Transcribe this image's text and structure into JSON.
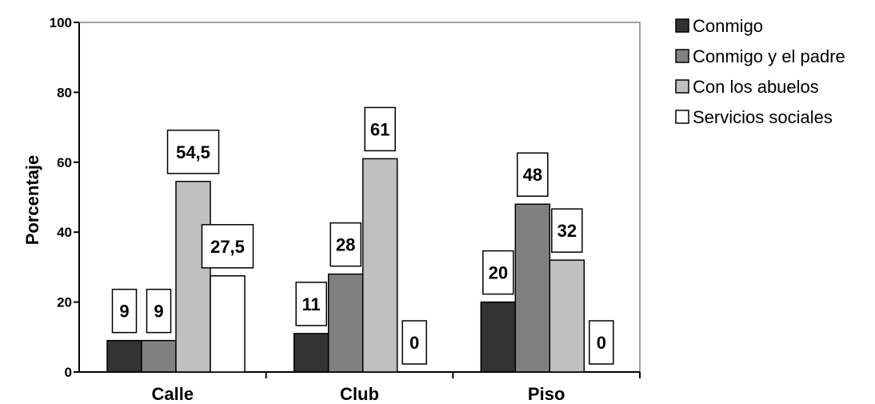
{
  "chart_data": {
    "type": "bar",
    "ylabel": "Porcentaje",
    "xlabel": "",
    "ylim": [
      0,
      100
    ],
    "yticks": [
      0,
      20,
      40,
      60,
      80,
      100
    ],
    "categories": [
      "Calle",
      "Club",
      "Piso"
    ],
    "series": [
      {
        "name": "Conmigo",
        "color": "#333333",
        "values": [
          9,
          11,
          20
        ],
        "labels": [
          "9",
          "11",
          "20"
        ]
      },
      {
        "name": "Conmigo y el padre",
        "color": "#808080",
        "values": [
          9,
          28,
          48
        ],
        "labels": [
          "9",
          "28",
          "48"
        ]
      },
      {
        "name": "Con los abuelos",
        "color": "#c0c0c0",
        "values": [
          54.5,
          61,
          32
        ],
        "labels": [
          "54,5",
          "61",
          "32"
        ]
      },
      {
        "name": "Servicios sociales",
        "color": "#ffffff",
        "values": [
          27.5,
          0,
          0
        ],
        "labels": [
          "27,5",
          "0",
          "0"
        ]
      }
    ],
    "legend_position": "right",
    "grid": false
  }
}
